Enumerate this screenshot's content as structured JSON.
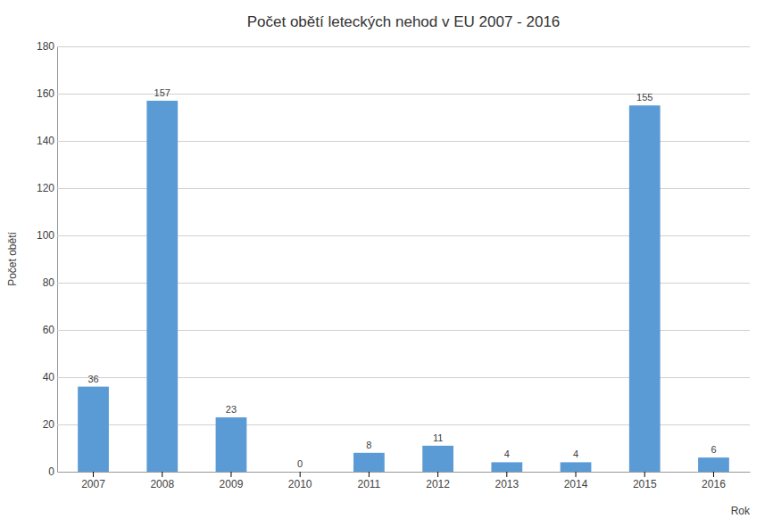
{
  "chart_data": {
    "type": "bar",
    "title": "Počet obětí leteckých nehod v EU 2007 - 2016",
    "xlabel": "Rok",
    "ylabel": "Počet obětí",
    "categories": [
      "2007",
      "2008",
      "2009",
      "2010",
      "2011",
      "2012",
      "2013",
      "2014",
      "2015",
      "2016"
    ],
    "values": [
      36,
      157,
      23,
      0,
      8,
      11,
      4,
      4,
      155,
      6
    ],
    "color": "#5B9BD5",
    "ylim": [
      0,
      180
    ],
    "yticks": [
      0,
      20,
      40,
      60,
      80,
      100,
      120,
      140,
      160,
      180
    ],
    "grid": true,
    "data_labels": true
  }
}
